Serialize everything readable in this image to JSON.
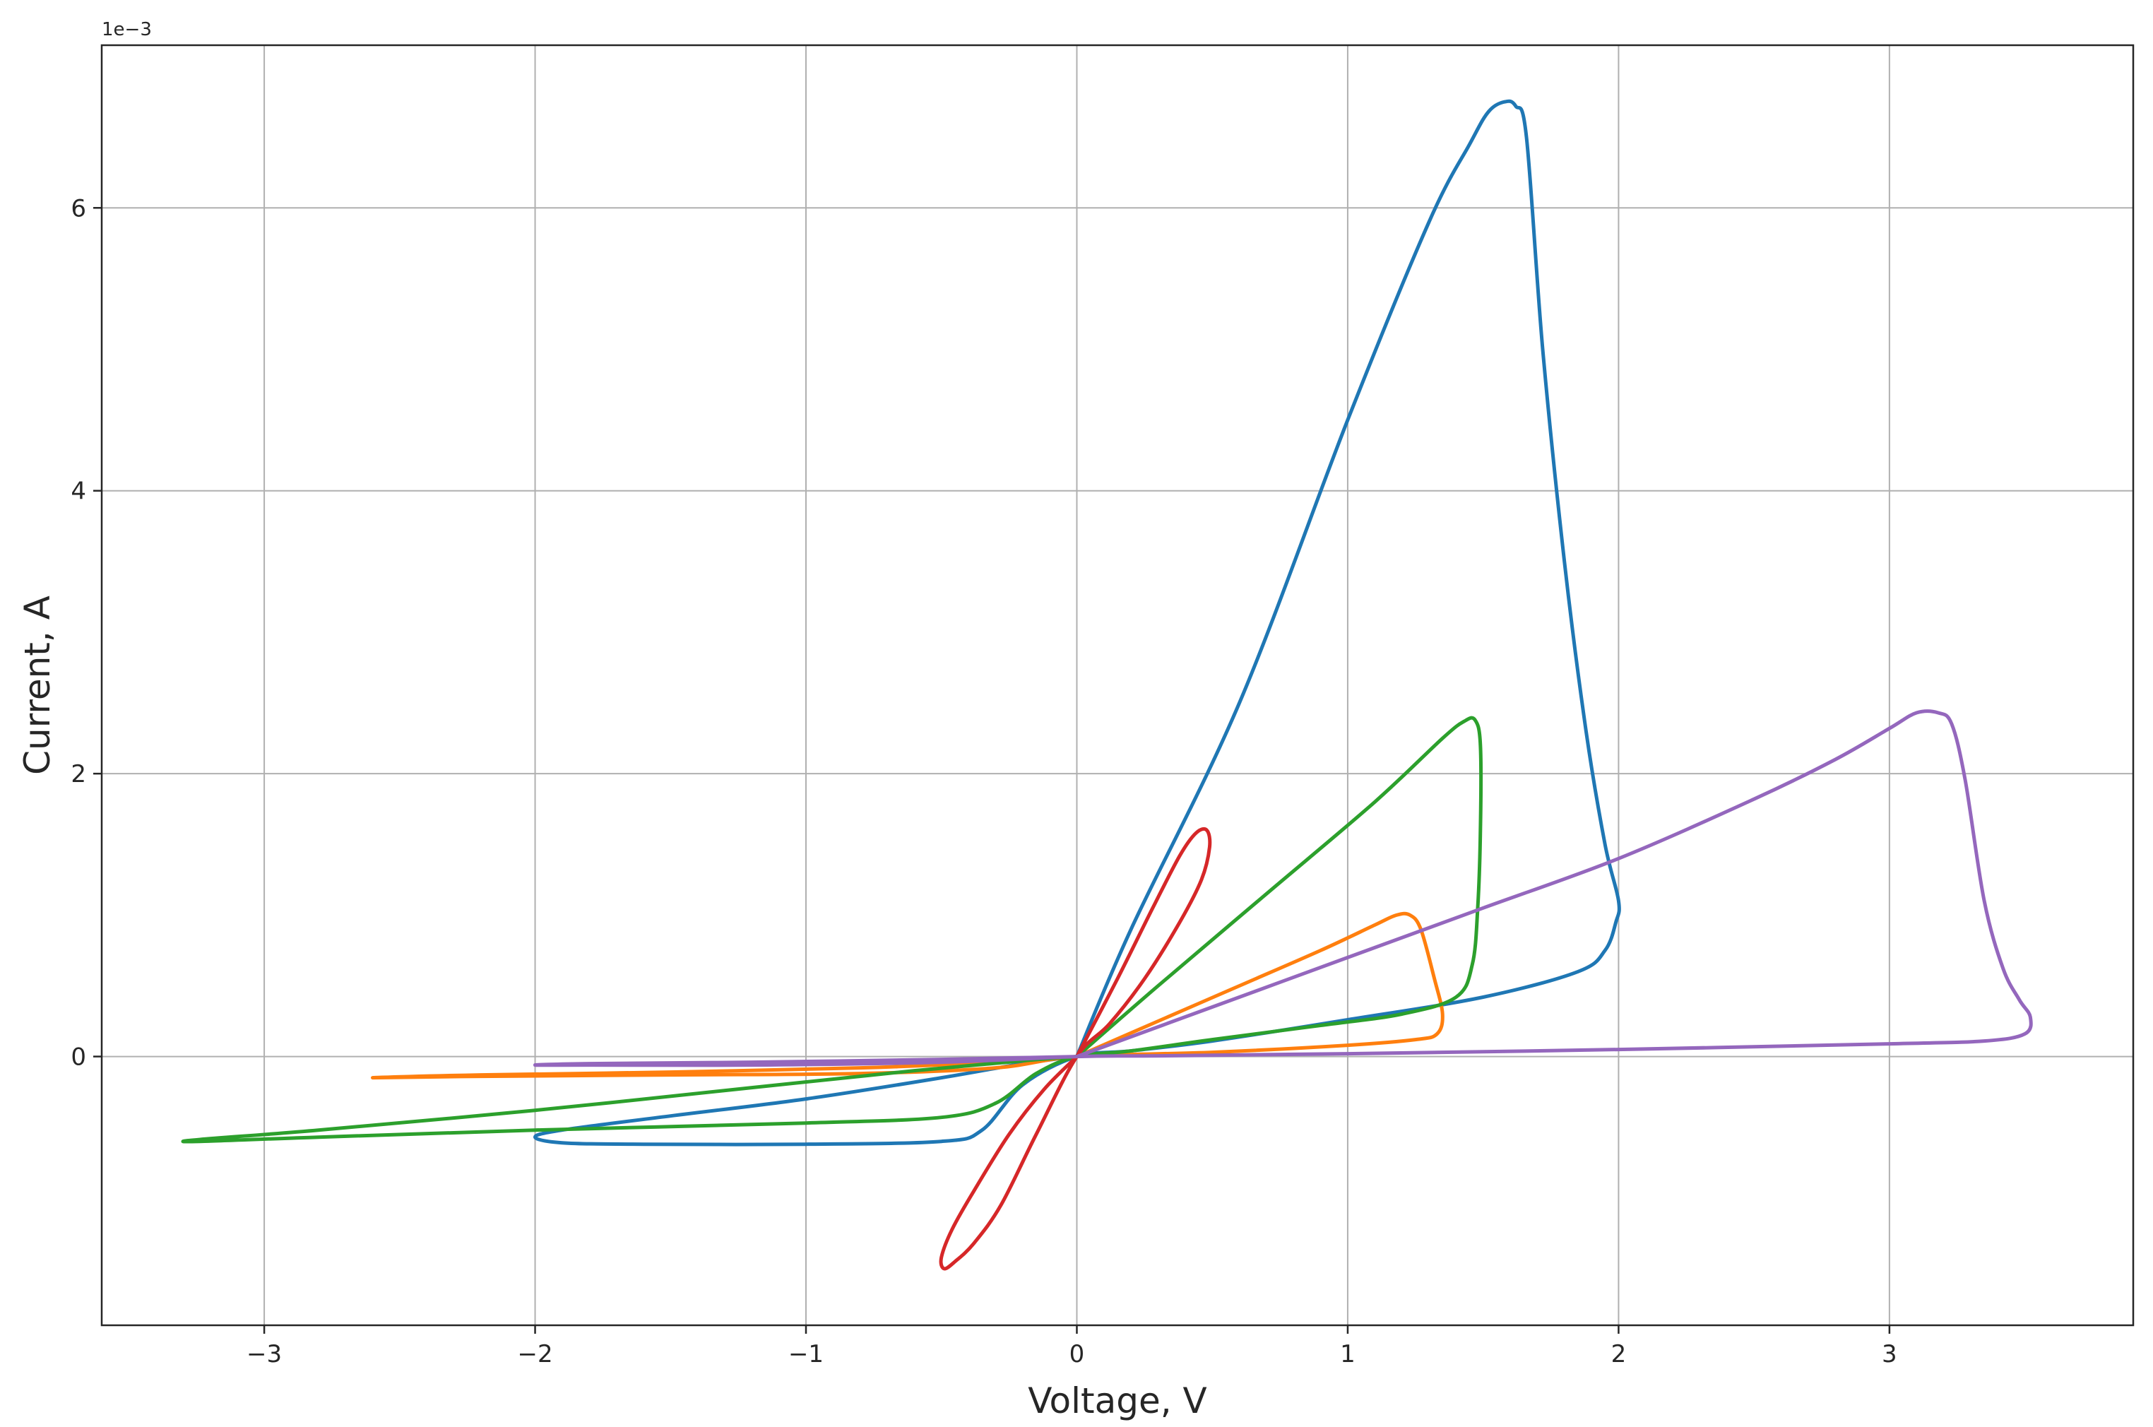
{
  "chart_data": {
    "type": "line",
    "title": "",
    "xlabel": "Voltage, V",
    "ylabel": "Current, A",
    "y_offset_text": "1e−3",
    "xlim": [
      -3.6,
      3.9
    ],
    "ylim": [
      -1.9,
      7.15
    ],
    "x_ticks": [
      {
        "value": -3,
        "label": "−3"
      },
      {
        "value": -2,
        "label": "−2"
      },
      {
        "value": -1,
        "label": "−1"
      },
      {
        "value": 0,
        "label": "0"
      },
      {
        "value": 1,
        "label": "1"
      },
      {
        "value": 2,
        "label": "2"
      },
      {
        "value": 3,
        "label": "3"
      }
    ],
    "y_ticks": [
      {
        "value": 0,
        "label": "0"
      },
      {
        "value": 2,
        "label": "2"
      },
      {
        "value": 4,
        "label": "4"
      },
      {
        "value": 6,
        "label": "6"
      }
    ],
    "grid": true,
    "legend": "none",
    "y_unit_scale": "1e-3",
    "series": [
      {
        "color": "#1f77b4",
        "points": [
          [
            0,
            0
          ],
          [
            0.2,
            0.9
          ],
          [
            0.6,
            2.5
          ],
          [
            1.0,
            4.5
          ],
          [
            1.3,
            5.9
          ],
          [
            1.45,
            6.45
          ],
          [
            1.52,
            6.68
          ],
          [
            1.58,
            6.75
          ],
          [
            1.62,
            6.72
          ],
          [
            1.66,
            6.5
          ],
          [
            1.72,
            5.0
          ],
          [
            1.8,
            3.5
          ],
          [
            1.88,
            2.3
          ],
          [
            1.95,
            1.5
          ],
          [
            2.0,
            1.1
          ],
          [
            1.99,
            0.95
          ],
          [
            1.95,
            0.75
          ],
          [
            1.85,
            0.6
          ],
          [
            1.5,
            0.42
          ],
          [
            1.0,
            0.26
          ],
          [
            0.5,
            0.11
          ],
          [
            0.2,
            0.04
          ],
          [
            0,
            0
          ],
          [
            -0.2,
            -0.2
          ],
          [
            -0.35,
            -0.52
          ],
          [
            -0.5,
            -0.6
          ],
          [
            -1.0,
            -0.62
          ],
          [
            -1.6,
            -0.62
          ],
          [
            -1.9,
            -0.61
          ],
          [
            -2.0,
            -0.57
          ],
          [
            -1.9,
            -0.52
          ],
          [
            -1.5,
            -0.42
          ],
          [
            -1.0,
            -0.3
          ],
          [
            -0.5,
            -0.15
          ],
          [
            -0.2,
            -0.05
          ],
          [
            0,
            0
          ]
        ]
      },
      {
        "color": "#ff7f0e",
        "points": [
          [
            0,
            0
          ],
          [
            0.3,
            0.25
          ],
          [
            0.6,
            0.5
          ],
          [
            0.9,
            0.75
          ],
          [
            1.1,
            0.93
          ],
          [
            1.18,
            1.0
          ],
          [
            1.23,
            1.0
          ],
          [
            1.27,
            0.9
          ],
          [
            1.32,
            0.55
          ],
          [
            1.35,
            0.3
          ],
          [
            1.33,
            0.16
          ],
          [
            1.25,
            0.12
          ],
          [
            1.0,
            0.08
          ],
          [
            0.5,
            0.03
          ],
          [
            0,
            0
          ],
          [
            -0.3,
            -0.08
          ],
          [
            -0.8,
            -0.12
          ],
          [
            -1.5,
            -0.13
          ],
          [
            -2.2,
            -0.14
          ],
          [
            -2.6,
            -0.15
          ],
          [
            -2.2,
            -0.13
          ],
          [
            -1.5,
            -0.11
          ],
          [
            -0.8,
            -0.08
          ],
          [
            -0.3,
            -0.04
          ],
          [
            0,
            0
          ]
        ]
      },
      {
        "color": "#2ca02c",
        "points": [
          [
            0,
            0
          ],
          [
            0.3,
            0.5
          ],
          [
            0.7,
            1.15
          ],
          [
            1.1,
            1.8
          ],
          [
            1.35,
            2.25
          ],
          [
            1.43,
            2.37
          ],
          [
            1.47,
            2.38
          ],
          [
            1.49,
            2.2
          ],
          [
            1.49,
            1.6
          ],
          [
            1.48,
            1.05
          ],
          [
            1.46,
            0.65
          ],
          [
            1.4,
            0.42
          ],
          [
            1.2,
            0.3
          ],
          [
            0.9,
            0.22
          ],
          [
            0.5,
            0.12
          ],
          [
            0.2,
            0.04
          ],
          [
            0,
            0
          ],
          [
            -0.15,
            -0.12
          ],
          [
            -0.3,
            -0.33
          ],
          [
            -0.5,
            -0.43
          ],
          [
            -1.0,
            -0.47
          ],
          [
            -2.0,
            -0.52
          ],
          [
            -2.8,
            -0.57
          ],
          [
            -3.3,
            -0.6
          ],
          [
            -2.8,
            -0.52
          ],
          [
            -2.0,
            -0.38
          ],
          [
            -1.2,
            -0.22
          ],
          [
            -0.6,
            -0.1
          ],
          [
            -0.2,
            -0.03
          ],
          [
            0,
            0
          ]
        ]
      },
      {
        "color": "#d62728",
        "points": [
          [
            0,
            0
          ],
          [
            0.15,
            0.55
          ],
          [
            0.28,
            1.05
          ],
          [
            0.38,
            1.42
          ],
          [
            0.44,
            1.58
          ],
          [
            0.48,
            1.6
          ],
          [
            0.49,
            1.48
          ],
          [
            0.46,
            1.25
          ],
          [
            0.38,
            0.95
          ],
          [
            0.25,
            0.55
          ],
          [
            0.12,
            0.23
          ],
          [
            0,
            0
          ],
          [
            -0.15,
            -0.55
          ],
          [
            -0.28,
            -1.05
          ],
          [
            -0.38,
            -1.32
          ],
          [
            -0.45,
            -1.45
          ],
          [
            -0.49,
            -1.5
          ],
          [
            -0.5,
            -1.42
          ],
          [
            -0.46,
            -1.22
          ],
          [
            -0.38,
            -0.95
          ],
          [
            -0.25,
            -0.55
          ],
          [
            -0.12,
            -0.23
          ],
          [
            0,
            0
          ]
        ]
      },
      {
        "color": "#9467bd",
        "points": [
          [
            0,
            0
          ],
          [
            0.5,
            0.35
          ],
          [
            1.0,
            0.7
          ],
          [
            1.5,
            1.05
          ],
          [
            2.0,
            1.4
          ],
          [
            2.5,
            1.82
          ],
          [
            2.8,
            2.1
          ],
          [
            3.0,
            2.32
          ],
          [
            3.1,
            2.43
          ],
          [
            3.18,
            2.43
          ],
          [
            3.23,
            2.35
          ],
          [
            3.28,
            1.95
          ],
          [
            3.35,
            1.1
          ],
          [
            3.42,
            0.62
          ],
          [
            3.48,
            0.4
          ],
          [
            3.52,
            0.28
          ],
          [
            3.5,
            0.16
          ],
          [
            3.35,
            0.11
          ],
          [
            3.0,
            0.09
          ],
          [
            2.0,
            0.05
          ],
          [
            1.0,
            0.02
          ],
          [
            0.3,
            0.005
          ],
          [
            0,
            0
          ],
          [
            -0.5,
            -0.04
          ],
          [
            -1.2,
            -0.06
          ],
          [
            -1.8,
            -0.06
          ],
          [
            -2.0,
            -0.06
          ],
          [
            -1.8,
            -0.05
          ],
          [
            -1.2,
            -0.04
          ],
          [
            -0.5,
            -0.02
          ],
          [
            0,
            0
          ]
        ]
      }
    ]
  }
}
